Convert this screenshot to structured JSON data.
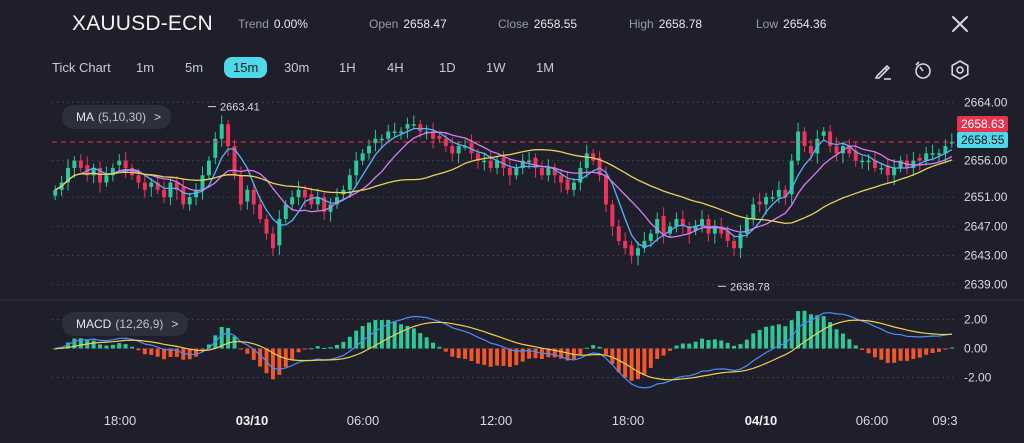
{
  "header": {
    "symbol": "XAUUSD-ECN",
    "stats": [
      {
        "label": "Trend",
        "value": "0.00%"
      },
      {
        "label": "Open",
        "value": "2658.47"
      },
      {
        "label": "Close",
        "value": "2658.55"
      },
      {
        "label": "High",
        "value": "2658.78"
      },
      {
        "label": "Low",
        "value": "2654.36"
      }
    ]
  },
  "timeframes": [
    "Tick Chart",
    "1m",
    "5m",
    "15m",
    "30m",
    "1H",
    "4H",
    "1D",
    "1W",
    "1M"
  ],
  "active_timeframe": "15m",
  "tools": [
    "draw-icon",
    "indicator-icon",
    "settings-icon",
    "close-icon"
  ],
  "ma_indicator": {
    "name": "MA",
    "params": "(5,10,30)",
    "chevron": ">"
  },
  "macd_indicator": {
    "name": "MACD",
    "params": "(12,26,9)",
    "chevron": ">"
  },
  "price_axis": {
    "labels": [
      "2664.00",
      "2656.00",
      "2651.00",
      "2647.00",
      "2643.00",
      "2639.00"
    ]
  },
  "price_tags": {
    "red_tag": "2658.63",
    "cyan_tag": "2658.55"
  },
  "annotations": {
    "high": "2663.41",
    "low": "2638.78"
  },
  "macd_axis": {
    "labels": [
      "2.00",
      "0.00",
      "-2.00"
    ]
  },
  "time_axis": {
    "labels": [
      "18:00",
      "03/10",
      "06:00",
      "12:00",
      "18:00",
      "04/10",
      "06:00",
      "09:3"
    ],
    "bold": [
      "03/10",
      "04/10"
    ]
  },
  "colors": {
    "up": "#2ec99a",
    "down": "#f0335a",
    "ma5": "#54b4ff",
    "ma10": "#d87df2",
    "ma30": "#e7d35a",
    "cyan": "#4fd9e8",
    "macd_pos": "#2ec99a",
    "macd_neg": "#f2562a",
    "dif": "#4e8dff",
    "dea": "#f0d050",
    "bg": "#1e1f2a"
  },
  "chart_data": {
    "type": "candlestick",
    "price_ylim": [
      2638,
      2665
    ],
    "macd_ylim": [
      -3,
      3
    ],
    "closes": [
      2652,
      2653,
      2655,
      2656,
      2655,
      2654,
      2655,
      2653,
      2654,
      2655,
      2656,
      2655,
      2654,
      2653,
      2652,
      2653,
      2652,
      2651,
      2653,
      2652,
      2650,
      2651,
      2652,
      2654,
      2656,
      2659,
      2661,
      2658,
      2654,
      2650,
      2652,
      2650,
      2648,
      2646,
      2644,
      2648,
      2650,
      2651,
      2652,
      2651,
      2650,
      2651,
      2649,
      2650,
      2651,
      2652,
      2654,
      2656,
      2657,
      2658,
      2659,
      2659,
      2660,
      2660,
      2660,
      2661,
      2661,
      2660,
      2660,
      2659,
      2659,
      2658,
      2657,
      2658,
      2658,
      2657,
      2656,
      2656,
      2655,
      2656,
      2655,
      2654,
      2655,
      2656,
      2656,
      2655,
      2654,
      2655,
      2654,
      2653,
      2652,
      2653,
      2655,
      2657,
      2656,
      2654,
      2650,
      2647,
      2645,
      2644,
      2643,
      2644,
      2645,
      2646,
      2648,
      2646,
      2647,
      2648,
      2647,
      2646,
      2647,
      2648,
      2646,
      2647,
      2646,
      2645,
      2644,
      2646,
      2648,
      2650,
      2650,
      2651,
      2651,
      2652,
      2651,
      2656,
      2660,
      2658,
      2657,
      2659,
      2660,
      2658,
      2657,
      2658,
      2657,
      2656,
      2656,
      2656,
      2655,
      2655,
      2654,
      2655,
      2656,
      2655,
      2656,
      2656,
      2657,
      2657,
      2657,
      2658,
      2658.55
    ],
    "high": 2663.41,
    "low": 2638.78,
    "last": 2658.55,
    "macd": {
      "dif_range": [
        -2.5,
        2.5
      ],
      "dea_range": [
        -2.1,
        2.1
      ]
    }
  }
}
